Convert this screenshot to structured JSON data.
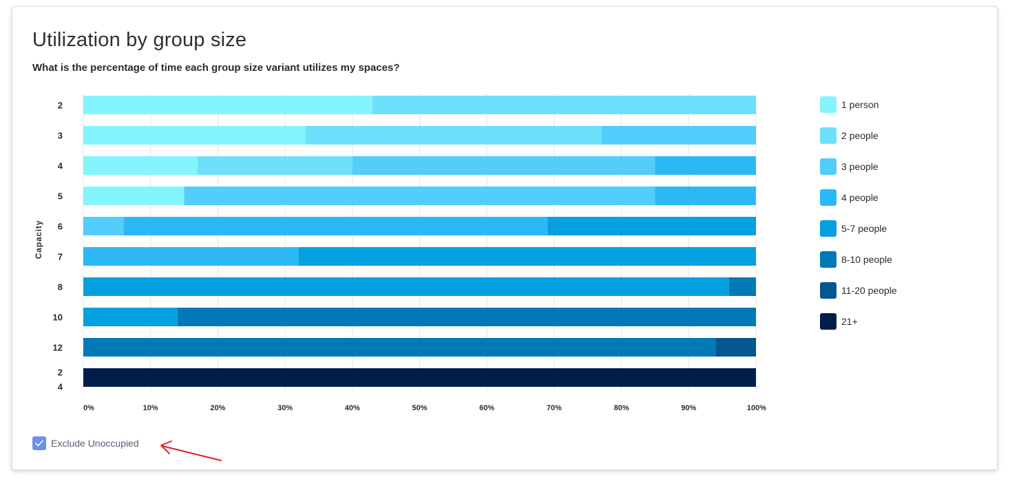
{
  "header": {
    "title": "Utilization by group size",
    "subtitle": "What is the percentage of time each group size variant utilizes my spaces?"
  },
  "controls": {
    "exclude_label": "Exclude Unoccupied",
    "exclude_checked": true
  },
  "colors": {
    "segments": [
      "#84f5fd",
      "#6de0fc",
      "#52cdfc",
      "#2cb8f6",
      "#05a0e0",
      "#0179b6",
      "#04578e",
      "#001e4c"
    ],
    "checkbox": "#6b8ff0",
    "arrow": "#e02020"
  },
  "chart_data": {
    "type": "bar",
    "orientation": "horizontal",
    "stacked": true,
    "ylabel": "Capacity",
    "xlabel": "",
    "xlim": [
      0,
      100
    ],
    "x_ticks": [
      "0%",
      "10%",
      "20%",
      "30%",
      "40%",
      "50%",
      "60%",
      "70%",
      "80%",
      "90%",
      "100%"
    ],
    "categories": [
      "2",
      "3",
      "4",
      "5",
      "6",
      "7",
      "8",
      "10",
      "12",
      "24"
    ],
    "category_display": [
      [
        "2"
      ],
      [
        "3"
      ],
      [
        "4"
      ],
      [
        "5"
      ],
      [
        "6"
      ],
      [
        "7"
      ],
      [
        "8"
      ],
      [
        "10"
      ],
      [
        "12"
      ],
      [
        "2",
        "4"
      ]
    ],
    "series": [
      {
        "name": "1 person",
        "values": [
          43,
          33,
          17,
          15,
          0,
          0,
          0,
          0,
          0,
          0
        ]
      },
      {
        "name": "2 people",
        "values": [
          57,
          44,
          23,
          0,
          0,
          0,
          0,
          0,
          0,
          0
        ]
      },
      {
        "name": "3 people",
        "values": [
          0,
          23,
          45,
          70,
          6,
          0,
          0,
          0,
          0,
          0
        ]
      },
      {
        "name": "4 people",
        "values": [
          0,
          0,
          15,
          15,
          63,
          32,
          0,
          0,
          0,
          0
        ]
      },
      {
        "name": "5-7 people",
        "values": [
          0,
          0,
          0,
          0,
          31,
          68,
          96,
          14,
          0,
          0
        ]
      },
      {
        "name": "8-10 people",
        "values": [
          0,
          0,
          0,
          0,
          0,
          0,
          4,
          86,
          94,
          0
        ]
      },
      {
        "name": "11-20 people",
        "values": [
          0,
          0,
          0,
          0,
          0,
          0,
          0,
          0,
          6,
          0
        ]
      },
      {
        "name": "21+",
        "values": [
          0,
          0,
          0,
          0,
          0,
          0,
          0,
          0,
          0,
          100
        ]
      }
    ],
    "legend_position": "right",
    "grid": true
  }
}
